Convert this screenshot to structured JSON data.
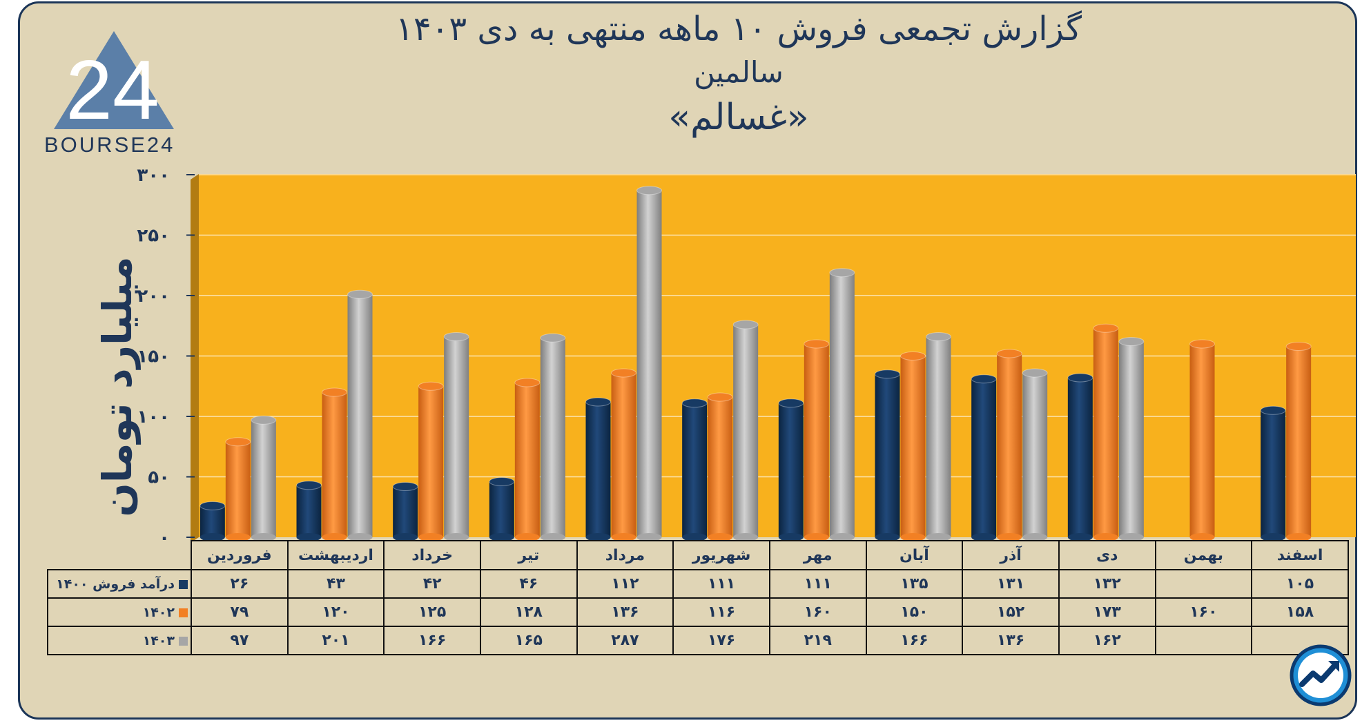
{
  "title": {
    "line1": "گزارش تجمعی فروش ۱۰ ماهه منتهی به دی ۱۴۰۳",
    "line2": "سالمین",
    "line3": "«غسالم»"
  },
  "logo": {
    "text": "BOURSE24",
    "mark": "24"
  },
  "badge_icon": "trend-arrow-icon",
  "colors": {
    "s1400": "#173a63",
    "s1402": "#f28024",
    "s1403": "#a6a6a6",
    "plot_bg": "#f8b11d",
    "page_bg": "#e0d5b6",
    "text": "#1f3658"
  },
  "chart_data": {
    "type": "bar",
    "title": "گزارش تجمعی فروش ۱۰ ماهه منتهی به دی ۱۴۰۳",
    "ylabel": "میلیارد تومان",
    "ylim": [
      0,
      300
    ],
    "yticks": [
      "۰",
      "۵۰",
      "۱۰۰",
      "۱۵۰",
      "۲۰۰",
      "۲۵۰",
      "۳۰۰"
    ],
    "grid": true,
    "categories": [
      "فروردین",
      "اردیبهشت",
      "خرداد",
      "تیر",
      "مرداد",
      "شهریور",
      "مهر",
      "آبان",
      "آذر",
      "دی",
      "بهمن",
      "اسفند"
    ],
    "series": [
      {
        "name": "درآمد فروش ۱۴۰۰",
        "values": [
          26,
          43,
          42,
          46,
          112,
          111,
          111,
          135,
          131,
          132,
          null,
          105
        ],
        "labels": [
          "۲۶",
          "۴۳",
          "۴۲",
          "۴۶",
          "۱۱۲",
          "۱۱۱",
          "۱۱۱",
          "۱۳۵",
          "۱۳۱",
          "۱۳۲",
          "",
          "۱۰۵"
        ]
      },
      {
        "name": "۱۴۰۲",
        "values": [
          79,
          120,
          125,
          128,
          136,
          116,
          160,
          150,
          152,
          173,
          160,
          158
        ],
        "labels": [
          "۷۹",
          "۱۲۰",
          "۱۲۵",
          "۱۲۸",
          "۱۳۶",
          "۱۱۶",
          "۱۶۰",
          "۱۵۰",
          "۱۵۲",
          "۱۷۳",
          "۱۶۰",
          "۱۵۸"
        ]
      },
      {
        "name": "۱۴۰۳",
        "values": [
          97,
          201,
          166,
          165,
          287,
          176,
          219,
          166,
          136,
          162,
          null,
          null
        ],
        "labels": [
          "۹۷",
          "۲۰۱",
          "۱۶۶",
          "۱۶۵",
          "۲۸۷",
          "۱۷۶",
          "۲۱۹",
          "۱۶۶",
          "۱۳۶",
          "۱۶۲",
          "",
          ""
        ]
      }
    ]
  }
}
